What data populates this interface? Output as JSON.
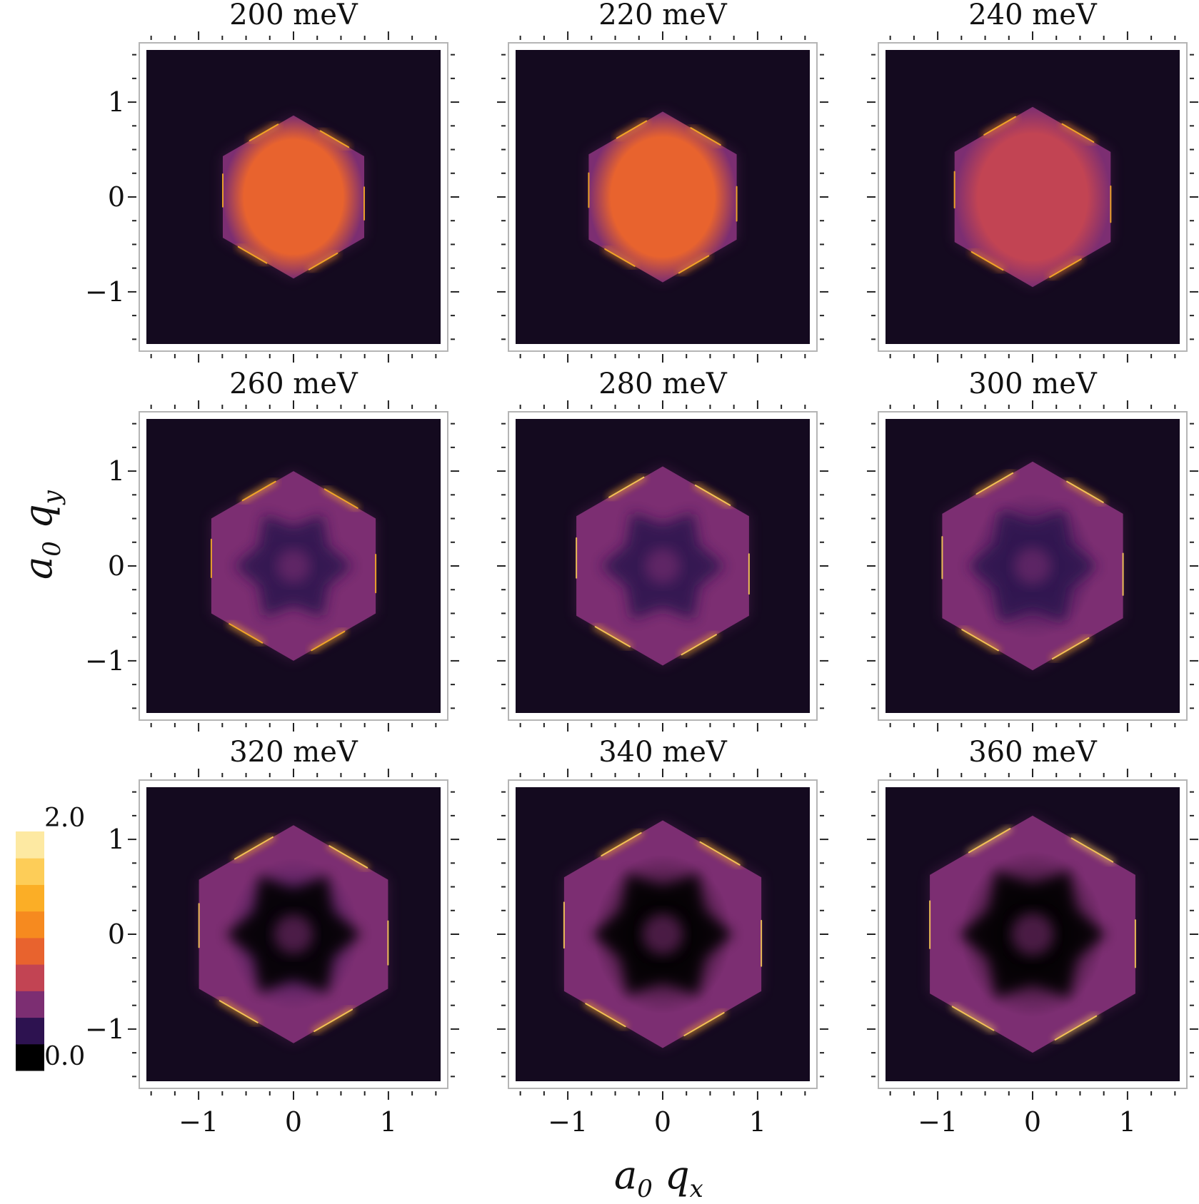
{
  "chart_data": {
    "type": "heatmap",
    "layout": "3x3 small multiples",
    "xlabel": "a0 qx",
    "ylabel": "a0 qy",
    "x_range": [
      -1.55,
      1.55
    ],
    "y_range": [
      -1.55,
      1.55
    ],
    "x_ticks": [
      -1,
      0,
      1
    ],
    "y_ticks": [
      -1,
      0,
      1
    ],
    "tick_labels": {
      "neg_one": "−1",
      "zero": "0",
      "one": "1"
    },
    "colorbar": {
      "min": 0.0,
      "max": 2.0,
      "min_label": "0.0",
      "max_label": "2.0",
      "levels": [
        "#000000",
        "#2d1250",
        "#7c2e72",
        "#c24453",
        "#e8632e",
        "#f68a1f",
        "#fbae26",
        "#fdcd58",
        "#fde9a2"
      ]
    },
    "panels": [
      {
        "title": "200 meV",
        "energy_meV": 200,
        "hex_radius": 0.86,
        "center_intensity": 1.0,
        "edge_intensity": 1.05
      },
      {
        "title": "220 meV",
        "energy_meV": 220,
        "hex_radius": 0.9,
        "center_intensity": 0.95,
        "edge_intensity": 1.1
      },
      {
        "title": "240 meV",
        "energy_meV": 240,
        "hex_radius": 0.95,
        "center_intensity": 0.85,
        "edge_intensity": 1.15
      },
      {
        "title": "260 meV",
        "energy_meV": 260,
        "hex_radius": 1.0,
        "center_intensity": 0.55,
        "edge_intensity": 1.2
      },
      {
        "title": "280 meV",
        "energy_meV": 280,
        "hex_radius": 1.05,
        "center_intensity": 0.4,
        "edge_intensity": 1.25
      },
      {
        "title": "300 meV",
        "energy_meV": 300,
        "hex_radius": 1.1,
        "center_intensity": 0.3,
        "edge_intensity": 1.3
      },
      {
        "title": "320 meV",
        "energy_meV": 320,
        "hex_radius": 1.15,
        "center_intensity": 0.2,
        "edge_intensity": 1.35
      },
      {
        "title": "340 meV",
        "energy_meV": 340,
        "hex_radius": 1.2,
        "center_intensity": 0.12,
        "edge_intensity": 1.4
      },
      {
        "title": "360 meV",
        "energy_meV": 360,
        "hex_radius": 1.25,
        "center_intensity": 0.05,
        "edge_intensity": 1.45
      }
    ]
  }
}
